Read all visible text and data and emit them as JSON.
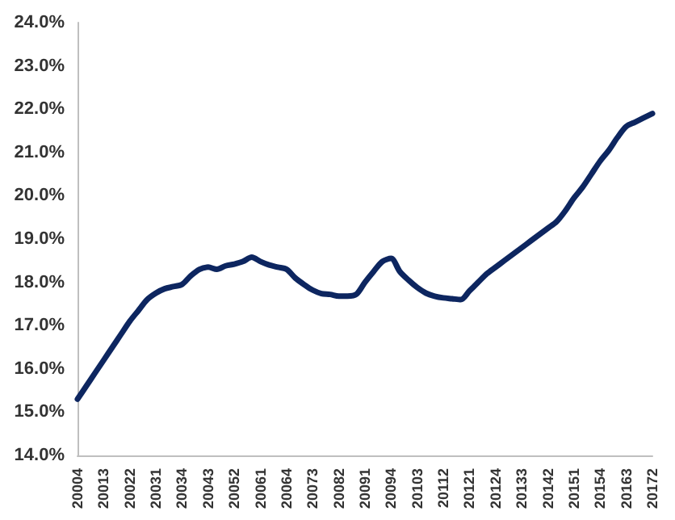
{
  "chart_data": {
    "type": "line",
    "categories": [
      "20004",
      null,
      null,
      "20013",
      null,
      null,
      "20022",
      null,
      null,
      "20031",
      null,
      null,
      "20034",
      null,
      null,
      "20043",
      null,
      null,
      "20052",
      null,
      null,
      "20061",
      null,
      null,
      "20064",
      null,
      null,
      "20073",
      null,
      null,
      "20082",
      null,
      null,
      "20091",
      null,
      null,
      "20094",
      null,
      null,
      "20103",
      null,
      null,
      "20112",
      null,
      null,
      "20121",
      null,
      null,
      "20124",
      null,
      null,
      "20133",
      null,
      null,
      "20142",
      null,
      null,
      "20151",
      null,
      null,
      "20154",
      null,
      null,
      "20163",
      null,
      null,
      "20172"
    ],
    "series": [
      {
        "color": "#0d2660",
        "values": [
          15.3,
          15.6,
          15.9,
          16.2,
          16.5,
          16.8,
          17.1,
          17.35,
          17.6,
          17.75,
          17.85,
          17.9,
          17.95,
          18.15,
          18.3,
          18.35,
          18.3,
          18.38,
          18.42,
          18.48,
          18.58,
          18.48,
          18.4,
          18.35,
          18.3,
          18.1,
          17.95,
          17.82,
          17.74,
          17.72,
          17.68,
          17.68,
          17.72,
          18.0,
          18.25,
          18.48,
          18.55,
          18.25,
          18.05,
          17.88,
          17.75,
          17.68,
          17.64,
          17.62,
          17.6,
          17.8,
          18.0,
          18.2,
          18.35,
          18.5,
          18.65,
          18.8,
          18.95,
          19.1,
          19.25,
          19.4,
          19.65,
          19.95,
          20.2,
          20.5,
          20.8,
          21.05,
          21.35,
          21.6,
          21.7,
          21.8,
          21.9
        ]
      }
    ],
    "ylim": [
      14,
      24
    ],
    "yticks": [
      {
        "value": 14,
        "label": "14.0%"
      },
      {
        "value": 15,
        "label": "15.0%"
      },
      {
        "value": 16,
        "label": "16.0%"
      },
      {
        "value": 17,
        "label": "17.0%"
      },
      {
        "value": 18,
        "label": "18.0%"
      },
      {
        "value": 19,
        "label": "19.0%"
      },
      {
        "value": 20,
        "label": "20.0%"
      },
      {
        "value": 21,
        "label": "21.0%"
      },
      {
        "value": 22,
        "label": "22.0%"
      },
      {
        "value": 23,
        "label": "23.0%"
      },
      {
        "value": 24,
        "label": "24.0%"
      }
    ],
    "marker": "none",
    "line_style": "solid"
  }
}
